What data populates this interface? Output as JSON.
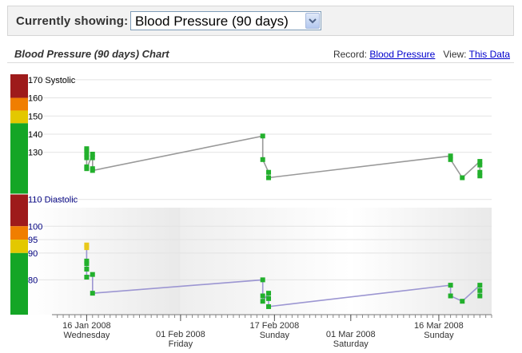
{
  "toolbar": {
    "label": "Currently showing:",
    "selected_view": "Blood Pressure (90 days)"
  },
  "chart_header": {
    "title": "Blood Pressure (90 days) Chart",
    "record_label": "Record:",
    "record_link": "Blood Pressure",
    "view_label": "View:",
    "view_link": "This Data"
  },
  "colors": {
    "band_red": "#9e1b1b",
    "band_orange": "#f07e00",
    "band_yellow": "#e3c800",
    "band_green": "#14a626",
    "marker_green": "#22b02c",
    "marker_yellow": "#e8c81a",
    "systolic_line": "#999999",
    "diastolic_line": "#9c96d2"
  },
  "chart_data": [
    {
      "type": "line",
      "series": [
        {
          "name": "Systolic",
          "points": [
            [
              "2008-01-16",
              132
            ],
            [
              "2008-01-16",
              131
            ],
            [
              "2008-01-16",
              129
            ],
            [
              "2008-01-16",
              127
            ],
            [
              "2008-01-16",
              122
            ],
            [
              "2008-01-16",
              121
            ],
            [
              "2008-01-17",
              129
            ],
            [
              "2008-01-17",
              127
            ],
            [
              "2008-01-17",
              121
            ],
            [
              "2008-01-17",
              120
            ],
            [
              "2008-02-15",
              139
            ],
            [
              "2008-02-15",
              126
            ],
            [
              "2008-02-16",
              119
            ],
            [
              "2008-02-16",
              116
            ],
            [
              "2008-03-18",
              128
            ],
            [
              "2008-03-18",
              126
            ],
            [
              "2008-03-20",
              116
            ],
            [
              "2008-03-23",
              125
            ],
            [
              "2008-03-23",
              123
            ],
            [
              "2008-03-23",
              119
            ],
            [
              "2008-03-23",
              117
            ]
          ]
        }
      ],
      "x_range": [
        "2008-01-06",
        "2008-03-25"
      ],
      "y_label_top": "170 Systolic",
      "y_ticks": [
        "160",
        "150",
        "140",
        "130"
      ],
      "y_tick_values": [
        160,
        150,
        140,
        130
      ],
      "ylim": [
        107,
        173
      ],
      "bands": [
        {
          "from": 160,
          "to": 173,
          "color": "red"
        },
        {
          "from": 153,
          "to": 160,
          "color": "orange"
        },
        {
          "from": 146,
          "to": 153,
          "color": "yellow"
        },
        {
          "from": 107,
          "to": 146,
          "color": "green"
        }
      ]
    },
    {
      "type": "line",
      "series": [
        {
          "name": "Diastolic",
          "points": [
            [
              "2008-01-16",
              93
            ],
            [
              "2008-01-16",
              92
            ],
            [
              "2008-01-16",
              87
            ],
            [
              "2008-01-16",
              86
            ],
            [
              "2008-01-16",
              84
            ],
            [
              "2008-01-16",
              81
            ],
            [
              "2008-01-17",
              82
            ],
            [
              "2008-01-17",
              75
            ],
            [
              "2008-02-15",
              80
            ],
            [
              "2008-02-15",
              74
            ],
            [
              "2008-02-15",
              72
            ],
            [
              "2008-02-16",
              75
            ],
            [
              "2008-02-16",
              73
            ],
            [
              "2008-02-16",
              70
            ],
            [
              "2008-03-18",
              78
            ],
            [
              "2008-03-18",
              74
            ],
            [
              "2008-03-20",
              72
            ],
            [
              "2008-03-23",
              78
            ],
            [
              "2008-03-23",
              76
            ],
            [
              "2008-03-23",
              74
            ]
          ]
        }
      ],
      "x_range": [
        "2008-01-06",
        "2008-03-25"
      ],
      "y_label_top": "110 Diastolic",
      "y_ticks": [
        "100",
        "95",
        "90",
        "80"
      ],
      "y_tick_values": [
        100,
        95,
        90,
        80
      ],
      "ylim": [
        67,
        112
      ],
      "bands": [
        {
          "from": 100,
          "to": 112,
          "color": "red"
        },
        {
          "from": 95,
          "to": 100,
          "color": "orange"
        },
        {
          "from": 90,
          "to": 95,
          "color": "yellow"
        },
        {
          "from": 67,
          "to": 90,
          "color": "green"
        }
      ]
    }
  ],
  "x_axis": {
    "ticks": [
      {
        "date": "2008-01-16",
        "label": "16 Jan 2008",
        "day": "Wednesday",
        "row": 0
      },
      {
        "date": "2008-02-01",
        "label": "01 Feb 2008",
        "day": "Friday",
        "row": 1
      },
      {
        "date": "2008-02-17",
        "label": "17 Feb 2008",
        "day": "Sunday",
        "row": 0
      },
      {
        "date": "2008-03-01",
        "label": "01 Mar 2008",
        "day": "Saturday",
        "row": 1
      },
      {
        "date": "2008-03-16",
        "label": "16 Mar 2008",
        "day": "Sunday",
        "row": 0
      }
    ]
  }
}
